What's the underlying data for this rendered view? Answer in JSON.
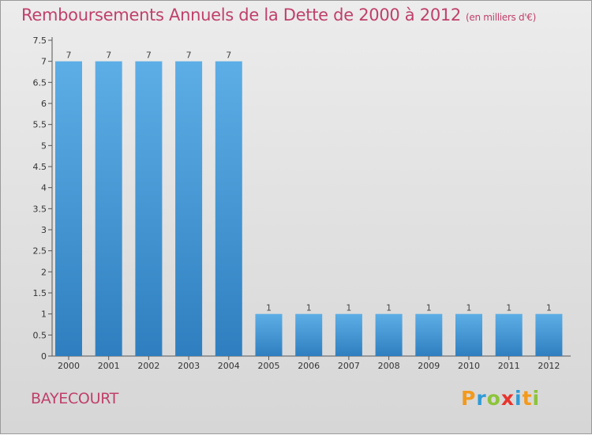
{
  "header": {
    "title": "Remboursements Annuels de la Dette de 2000 à 2012",
    "unit": "(en milliers d'€)"
  },
  "footer": {
    "commune": "BAYECOURT",
    "logo": "Proxiti"
  },
  "colors": {
    "title": "#c0406a",
    "bar_top": "#5daee6",
    "bar_bottom": "#2f7fc0",
    "logo": [
      "#f39a1c",
      "#2f9bd6",
      "#8cc43a",
      "#e8342c",
      "#2f9bd6",
      "#f39a1c",
      "#8cc43a"
    ]
  },
  "chart_data": {
    "type": "bar",
    "categories": [
      "2000",
      "2001",
      "2002",
      "2003",
      "2004",
      "2005",
      "2006",
      "2007",
      "2008",
      "2009",
      "2010",
      "2011",
      "2012"
    ],
    "values": [
      7,
      7,
      7,
      7,
      7,
      1,
      1,
      1,
      1,
      1,
      1,
      1,
      1
    ],
    "value_labels": [
      "7",
      "7",
      "7",
      "7",
      "7",
      "1",
      "1",
      "1",
      "1",
      "1",
      "1",
      "1",
      "1"
    ],
    "yticks": [
      "0",
      "0.5",
      "1",
      "1.5",
      "2",
      "2.5",
      "3",
      "3.5",
      "4",
      "4.5",
      "5",
      "5.5",
      "6",
      "6.5",
      "7",
      "7.5"
    ],
    "ylim": [
      0,
      7.5
    ],
    "grid": false
  }
}
